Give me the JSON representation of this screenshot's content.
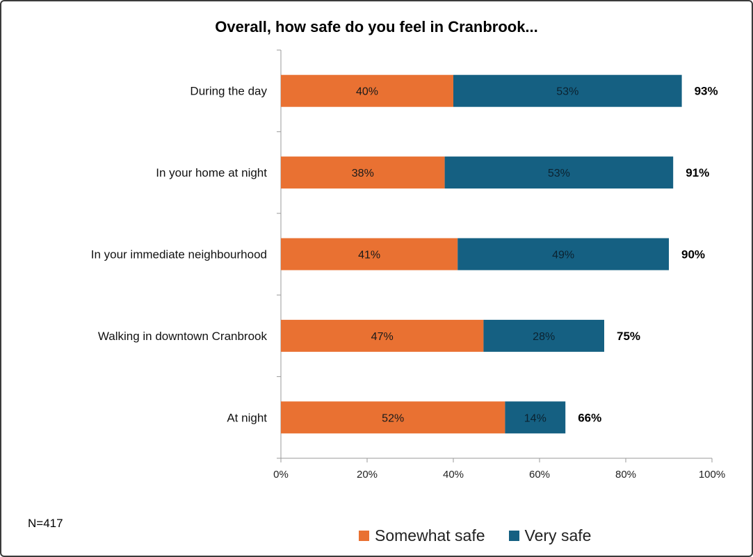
{
  "chart_data": {
    "type": "bar",
    "orientation": "horizontal",
    "stacked": true,
    "title": "Overall, how safe do you feel in Cranbrook...",
    "categories": [
      "During the day",
      "In your home at night",
      "In your immediate neighbourhood",
      "Walking in downtown Cranbrook",
      "At night"
    ],
    "series": [
      {
        "name": "Somewhat safe",
        "color": "#E97132",
        "values": [
          40,
          38,
          41,
          47,
          52
        ],
        "labels": [
          "40%",
          "38%",
          "41%",
          "47%",
          "52%"
        ]
      },
      {
        "name": "Very safe",
        "color": "#156082",
        "values": [
          53,
          53,
          49,
          28,
          14
        ],
        "labels": [
          "53%",
          "53%",
          "49%",
          "28%",
          "14%"
        ]
      }
    ],
    "totals": [
      93,
      91,
      90,
      75,
      66
    ],
    "total_labels": [
      "93%",
      "91%",
      "90%",
      "75%",
      "66%"
    ],
    "xlim": [
      0,
      100
    ],
    "xticks": [
      0,
      20,
      40,
      60,
      80,
      100
    ],
    "xtick_labels": [
      "0%",
      "20%",
      "40%",
      "60%",
      "80%",
      "100%"
    ],
    "grid": false,
    "legend_position": "bottom"
  },
  "note": "N=417"
}
